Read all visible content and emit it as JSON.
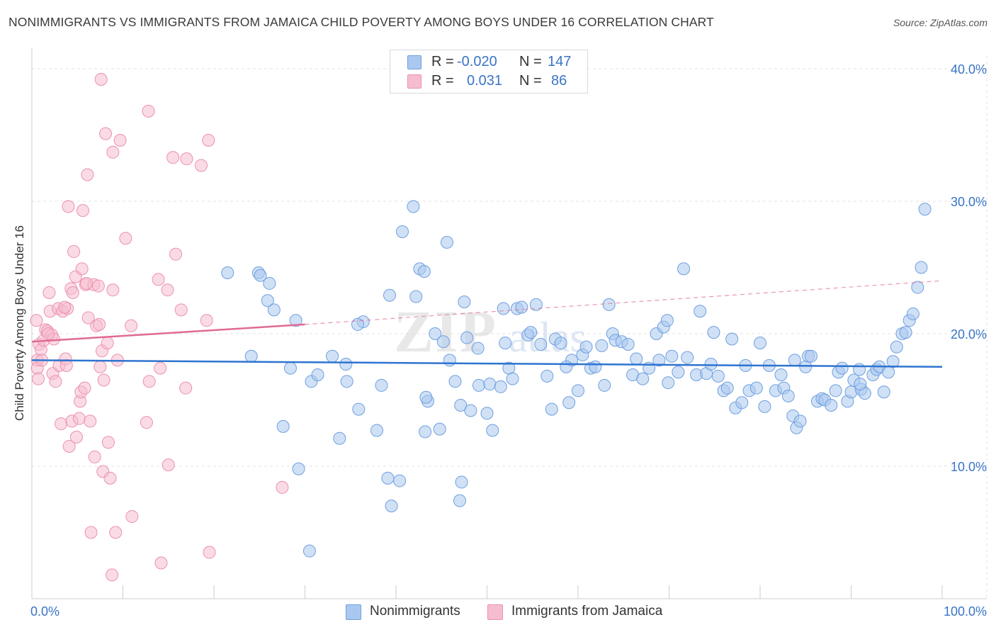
{
  "title": "NONIMMIGRANTS VS IMMIGRANTS FROM JAMAICA CHILD POVERTY AMONG BOYS UNDER 16 CORRELATION CHART",
  "source": "Source: ZipAtlas.com",
  "watermark": {
    "zip": "ZIP",
    "atlas": "atlas"
  },
  "legend": {
    "rows": [
      {
        "r_label": "R =",
        "r_value": "-0.020",
        "n_label": "N =",
        "n_value": "147"
      },
      {
        "r_label": "R =",
        "r_value": "0.031",
        "n_label": "N =",
        "n_value": "86"
      }
    ]
  },
  "bottom_legend": {
    "series1": "Nonimmigrants",
    "series2": "Immigrants from Jamaica"
  },
  "colors": {
    "blue_fill": "#aac8ef",
    "blue_stroke": "#6f9fe0",
    "blue_line": "#2e74d0",
    "pink_fill": "#f6bdd0",
    "pink_stroke": "#ec90ae",
    "pink_line": "#e06a94",
    "tick_text": "#3a74c6",
    "grid": "#e3e3e3",
    "axis": "#cccccc"
  },
  "chart_data": {
    "type": "scatter",
    "title": "NONIMMIGRANTS VS IMMIGRANTS FROM JAMAICA CHILD POVERTY AMONG BOYS UNDER 16 CORRELATION CHART",
    "xlabel": "",
    "ylabel": "Child Poverty Among Boys Under 16",
    "xlim": [
      0,
      100
    ],
    "ylim": [
      0,
      40
    ],
    "x_tick_labels": [
      "0.0%",
      "100.0%"
    ],
    "y_ticks": [
      10,
      20,
      30,
      40
    ],
    "y_tick_labels": [
      "10.0%",
      "20.0%",
      "30.0%",
      "40.0%"
    ],
    "grid": true,
    "series": [
      {
        "name": "Nonimmigrants",
        "R": -0.02,
        "N": 147,
        "trend": {
          "x": [
            0,
            100
          ],
          "y": [
            18.0,
            17.5
          ]
        },
        "points": [
          [
            21.5,
            24.6
          ],
          [
            24.9,
            24.6
          ],
          [
            25.1,
            24.4
          ],
          [
            26.1,
            23.8
          ],
          [
            25.9,
            22.5
          ],
          [
            26.6,
            21.8
          ],
          [
            29.0,
            21.0
          ],
          [
            24.1,
            18.3
          ],
          [
            28.4,
            17.4
          ],
          [
            30.7,
            16.4
          ],
          [
            31.4,
            16.9
          ],
          [
            27.6,
            13.0
          ],
          [
            29.3,
            9.8
          ],
          [
            30.5,
            3.6
          ],
          [
            33.0,
            18.3
          ],
          [
            34.5,
            17.7
          ],
          [
            34.6,
            16.4
          ],
          [
            33.8,
            12.1
          ],
          [
            35.9,
            14.3
          ],
          [
            36.4,
            20.9
          ],
          [
            35.8,
            20.7
          ],
          [
            37.9,
            12.7
          ],
          [
            38.4,
            16.1
          ],
          [
            39.1,
            9.1
          ],
          [
            39.3,
            22.9
          ],
          [
            39.5,
            7.0
          ],
          [
            40.7,
            27.7
          ],
          [
            40.4,
            8.9
          ],
          [
            41.9,
            29.6
          ],
          [
            42.2,
            22.8
          ],
          [
            42.6,
            24.9
          ],
          [
            43.1,
            24.7
          ],
          [
            43.2,
            12.6
          ],
          [
            43.5,
            14.9
          ],
          [
            44.3,
            20.0
          ],
          [
            44.8,
            12.8
          ],
          [
            45.2,
            19.4
          ],
          [
            45.6,
            26.9
          ],
          [
            45.9,
            18.0
          ],
          [
            47.0,
            7.4
          ],
          [
            47.2,
            8.8
          ],
          [
            47.1,
            14.6
          ],
          [
            47.5,
            22.4
          ],
          [
            47.8,
            19.7
          ],
          [
            48.2,
            14.2
          ],
          [
            49.0,
            18.9
          ],
          [
            49.1,
            16.1
          ],
          [
            50.3,
            16.2
          ],
          [
            50.0,
            14.0
          ],
          [
            50.6,
            12.7
          ],
          [
            51.8,
            21.9
          ],
          [
            52.0,
            19.3
          ],
          [
            52.4,
            17.4
          ],
          [
            52.8,
            16.6
          ],
          [
            53.3,
            21.9
          ],
          [
            53.8,
            22.0
          ],
          [
            54.5,
            19.9
          ],
          [
            54.8,
            20.1
          ],
          [
            55.4,
            22.2
          ],
          [
            55.9,
            19.2
          ],
          [
            56.6,
            16.8
          ],
          [
            57.1,
            14.3
          ],
          [
            57.5,
            19.6
          ],
          [
            58.1,
            19.3
          ],
          [
            59.0,
            14.8
          ],
          [
            59.3,
            18.0
          ],
          [
            60.0,
            15.7
          ],
          [
            60.5,
            18.4
          ],
          [
            60.9,
            19.0
          ],
          [
            61.4,
            17.4
          ],
          [
            61.9,
            17.5
          ],
          [
            62.6,
            19.1
          ],
          [
            62.9,
            16.1
          ],
          [
            63.4,
            22.2
          ],
          [
            63.8,
            20.0
          ],
          [
            64.1,
            19.5
          ],
          [
            64.8,
            19.4
          ],
          [
            65.5,
            19.2
          ],
          [
            66.0,
            16.9
          ],
          [
            66.4,
            18.1
          ],
          [
            67.1,
            16.6
          ],
          [
            67.8,
            17.4
          ],
          [
            68.6,
            20.0
          ],
          [
            68.9,
            18.0
          ],
          [
            69.4,
            20.5
          ],
          [
            69.8,
            21.0
          ],
          [
            70.3,
            18.3
          ],
          [
            71.0,
            17.1
          ],
          [
            71.6,
            24.9
          ],
          [
            72.0,
            18.2
          ],
          [
            73.0,
            16.9
          ],
          [
            73.4,
            21.7
          ],
          [
            74.1,
            17.0
          ],
          [
            74.6,
            17.7
          ],
          [
            74.9,
            20.1
          ],
          [
            75.4,
            16.8
          ],
          [
            76.0,
            15.7
          ],
          [
            76.4,
            15.9
          ],
          [
            76.9,
            19.6
          ],
          [
            77.3,
            14.4
          ],
          [
            78.0,
            14.8
          ],
          [
            78.4,
            17.6
          ],
          [
            78.8,
            15.7
          ],
          [
            79.6,
            15.9
          ],
          [
            80.0,
            19.3
          ],
          [
            80.5,
            14.5
          ],
          [
            81.0,
            17.6
          ],
          [
            81.7,
            15.7
          ],
          [
            82.3,
            16.9
          ],
          [
            82.6,
            15.9
          ],
          [
            83.1,
            15.3
          ],
          [
            83.6,
            13.8
          ],
          [
            84.0,
            12.9
          ],
          [
            84.4,
            13.4
          ],
          [
            85.0,
            17.5
          ],
          [
            85.3,
            18.3
          ],
          [
            85.6,
            18.3
          ],
          [
            86.3,
            14.9
          ],
          [
            86.8,
            15.1
          ],
          [
            87.1,
            15.0
          ],
          [
            87.8,
            14.6
          ],
          [
            88.3,
            15.7
          ],
          [
            88.6,
            17.1
          ],
          [
            89.0,
            17.4
          ],
          [
            89.6,
            14.9
          ],
          [
            90.0,
            15.6
          ],
          [
            90.3,
            16.5
          ],
          [
            90.9,
            17.3
          ],
          [
            91.1,
            15.8
          ],
          [
            91.5,
            15.5
          ],
          [
            92.4,
            16.9
          ],
          [
            92.8,
            17.3
          ],
          [
            93.1,
            17.5
          ],
          [
            93.6,
            15.6
          ],
          [
            94.1,
            17.1
          ],
          [
            94.6,
            17.9
          ],
          [
            95.0,
            19.0
          ],
          [
            95.6,
            20.0
          ],
          [
            96.0,
            20.1
          ],
          [
            96.4,
            21.0
          ],
          [
            96.8,
            21.5
          ],
          [
            97.3,
            23.5
          ],
          [
            97.7,
            25.0
          ],
          [
            98.1,
            29.4
          ],
          [
            43.3,
            15.2
          ],
          [
            46.5,
            16.4
          ],
          [
            51.5,
            16.0
          ],
          [
            58.7,
            17.5
          ],
          [
            69.9,
            16.3
          ],
          [
            83.8,
            18.0
          ],
          [
            91.0,
            16.2
          ]
        ]
      },
      {
        "name": "Immigrants from Jamaica",
        "R": 0.031,
        "N": 86,
        "trend": {
          "x": [
            0,
            30
          ],
          "y": [
            19.4,
            20.7
          ],
          "dashed_to": [
            100,
            24.0
          ]
        },
        "points": [
          [
            0.5,
            21.0
          ],
          [
            0.6,
            18.0
          ],
          [
            0.6,
            17.4
          ],
          [
            0.7,
            16.6
          ],
          [
            0.8,
            19.2
          ],
          [
            1.0,
            18.8
          ],
          [
            1.1,
            18.0
          ],
          [
            1.3,
            19.5
          ],
          [
            1.5,
            20.3
          ],
          [
            1.7,
            20.2
          ],
          [
            1.9,
            23.1
          ],
          [
            2.0,
            21.7
          ],
          [
            2.2,
            19.9
          ],
          [
            2.3,
            17.0
          ],
          [
            2.4,
            19.6
          ],
          [
            2.6,
            16.4
          ],
          [
            2.9,
            21.9
          ],
          [
            3.0,
            17.6
          ],
          [
            3.2,
            13.2
          ],
          [
            3.4,
            21.7
          ],
          [
            3.7,
            18.1
          ],
          [
            3.8,
            17.6
          ],
          [
            3.9,
            21.9
          ],
          [
            4.0,
            29.6
          ],
          [
            4.1,
            11.5
          ],
          [
            4.3,
            23.4
          ],
          [
            4.4,
            13.4
          ],
          [
            4.5,
            23.1
          ],
          [
            4.6,
            26.2
          ],
          [
            4.8,
            24.3
          ],
          [
            4.9,
            12.2
          ],
          [
            5.2,
            13.6
          ],
          [
            5.3,
            14.9
          ],
          [
            5.4,
            15.6
          ],
          [
            5.5,
            24.9
          ],
          [
            5.6,
            29.3
          ],
          [
            5.8,
            15.9
          ],
          [
            5.9,
            23.7
          ],
          [
            6.1,
            32.0
          ],
          [
            6.2,
            21.2
          ],
          [
            6.4,
            13.4
          ],
          [
            6.5,
            5.0
          ],
          [
            6.8,
            23.7
          ],
          [
            6.9,
            10.7
          ],
          [
            7.1,
            20.6
          ],
          [
            7.3,
            23.6
          ],
          [
            7.4,
            20.7
          ],
          [
            7.5,
            17.5
          ],
          [
            7.6,
            39.2
          ],
          [
            7.7,
            18.7
          ],
          [
            7.8,
            9.6
          ],
          [
            7.9,
            16.5
          ],
          [
            8.1,
            35.1
          ],
          [
            8.4,
            11.8
          ],
          [
            8.6,
            9.1
          ],
          [
            8.8,
            1.8
          ],
          [
            8.9,
            23.3
          ],
          [
            8.9,
            33.7
          ],
          [
            9.2,
            5.0
          ],
          [
            9.4,
            18.0
          ],
          [
            9.7,
            34.6
          ],
          [
            10.3,
            27.2
          ],
          [
            10.9,
            20.6
          ],
          [
            11.0,
            6.2
          ],
          [
            12.6,
            13.3
          ],
          [
            12.8,
            36.8
          ],
          [
            12.9,
            16.4
          ],
          [
            13.9,
            24.1
          ],
          [
            14.1,
            17.4
          ],
          [
            14.2,
            2.7
          ],
          [
            14.9,
            23.3
          ],
          [
            15.0,
            10.1
          ],
          [
            15.5,
            33.3
          ],
          [
            15.8,
            26.0
          ],
          [
            16.4,
            21.8
          ],
          [
            16.9,
            15.9
          ],
          [
            17.0,
            33.2
          ],
          [
            18.6,
            32.7
          ],
          [
            19.2,
            21.0
          ],
          [
            19.4,
            34.6
          ],
          [
            19.5,
            3.5
          ],
          [
            27.5,
            8.4
          ],
          [
            3.6,
            22.0
          ],
          [
            1.8,
            20.0
          ],
          [
            6.0,
            23.8
          ],
          [
            8.3,
            19.3
          ]
        ]
      }
    ]
  }
}
